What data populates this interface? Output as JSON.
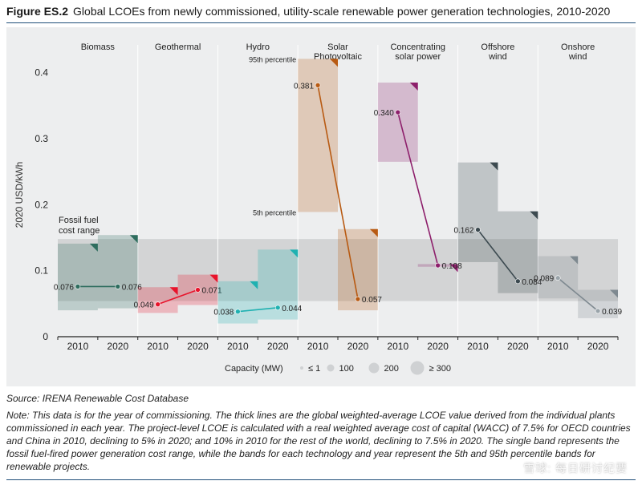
{
  "header": {
    "figure_label": "Figure ES.2",
    "title": "Global LCOEs from newly commissioned, utility-scale renewable power generation technologies, 2010-2020"
  },
  "chart_data": {
    "type": "range-band-dot",
    "ylabel": "2020 USD/kWh",
    "ylim": [
      0,
      0.43
    ],
    "yticks": [
      0,
      0.1,
      0.2,
      0.3,
      0.4
    ],
    "ytick_labels": [
      "0",
      "0.1",
      "0.2",
      "0.3",
      "0.4"
    ],
    "fossil": {
      "label": [
        "Fossil fuel",
        "cost range"
      ],
      "low": 0.054,
      "high": 0.148
    },
    "percentile_labels": {
      "p95": "95th percentile",
      "p5": "5th percentile"
    },
    "technologies": [
      {
        "name": [
          "Biomass"
        ],
        "color": "#2e6d5e",
        "dot_color": "#2e6d5e",
        "years": [
          {
            "year": "2010",
            "value": 0.076,
            "label": "0.076",
            "p5": 0.04,
            "p95": 0.141
          },
          {
            "year": "2020",
            "value": 0.076,
            "label": "0.076",
            "p5": 0.043,
            "p95": 0.154
          }
        ]
      },
      {
        "name": [
          "Geothermal"
        ],
        "color": "#e8132b",
        "dot_color": "#e8132b",
        "years": [
          {
            "year": "2010",
            "value": 0.049,
            "label": "0.049",
            "p5": 0.036,
            "p95": 0.075
          },
          {
            "year": "2020",
            "value": 0.071,
            "label": "0.071",
            "p5": 0.048,
            "p95": 0.094
          }
        ]
      },
      {
        "name": [
          "Hydro"
        ],
        "color": "#1fb1b1",
        "dot_color": "#1fb1b1",
        "years": [
          {
            "year": "2010",
            "value": 0.038,
            "label": "0.038",
            "p5": 0.02,
            "p95": 0.084
          },
          {
            "year": "2020",
            "value": 0.044,
            "label": "0.044",
            "p5": 0.026,
            "p95": 0.132
          }
        ]
      },
      {
        "name": [
          "Solar",
          "Photovoltaic"
        ],
        "color": "#b85a12",
        "dot_color": "#b85a12",
        "years": [
          {
            "year": "2010",
            "value": 0.381,
            "label": "0.381",
            "p5": 0.189,
            "p95": 0.421
          },
          {
            "year": "2020",
            "value": 0.057,
            "label": "0.057",
            "p5": 0.04,
            "p95": 0.163
          }
        ]
      },
      {
        "name": [
          "Concentrating",
          "solar power"
        ],
        "color": "#8d1f6b",
        "dot_color": "#8d1f6b",
        "years": [
          {
            "year": "2010",
            "value": 0.34,
            "label": "0.340",
            "p5": 0.265,
            "p95": 0.385
          },
          {
            "year": "2020",
            "value": 0.108,
            "label": "0.108",
            "p5": 0.106,
            "p95": 0.11
          }
        ]
      },
      {
        "name": [
          "Offshore",
          "wind"
        ],
        "color": "#3c4a50",
        "dot_color": "#3c4a50",
        "years": [
          {
            "year": "2010",
            "value": 0.162,
            "label": "0.162",
            "p5": 0.113,
            "p95": 0.264
          },
          {
            "year": "2020",
            "value": 0.084,
            "label": "0.084",
            "p5": 0.066,
            "p95": 0.19
          }
        ]
      },
      {
        "name": [
          "Onshore",
          "wind"
        ],
        "color": "#7e8990",
        "dot_color": "#9aa4aa",
        "years": [
          {
            "year": "2010",
            "value": 0.089,
            "label": "0.089",
            "p5": 0.058,
            "p95": 0.122
          },
          {
            "year": "2020",
            "value": 0.039,
            "label": "0.039",
            "p5": 0.028,
            "p95": 0.071
          }
        ]
      }
    ],
    "legend": {
      "title": "Capacity (MW)",
      "items": [
        "≤ 1",
        "100",
        "200",
        "≥ 300"
      ]
    }
  },
  "source": "Source: IRENA Renewable Cost Database",
  "note": "Note: This data is for the year of commissioning. The thick lines are the global weighted-average LCOE value derived from the individual plants commissioned in each year. The project-level LCOE is calculated with a real weighted average cost of capital (WACC) of 7.5% for OECD countries and China in 2010, declining to 5% in 2020; and 10% in 2010 for the rest of the world, declining to 7.5% in 2020. The single band represents the fossil fuel-fired power generation cost range, while the bands for each technology and year represent the 5th and 95th percentile bands for renewable projects.",
  "watermark": "雪球: 每日研讨纪要"
}
